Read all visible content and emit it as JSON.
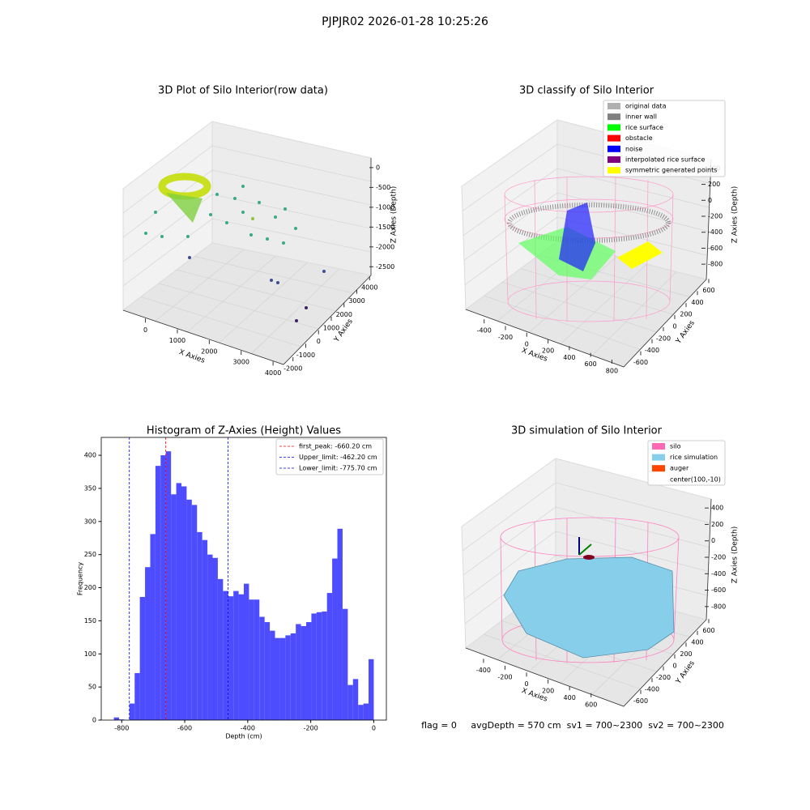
{
  "title": "PJPJR02 2026-01-28 10:25:26",
  "chart_data": [
    {
      "type": "scatter3d",
      "title": "3D Plot of Silo Interior(row data)",
      "xlabel": "X Axies",
      "ylabel": "Y Axies",
      "zlabel": "Z Axies (Depth)",
      "xlim": [
        -700,
        4200
      ],
      "xticks": [
        0,
        1000,
        2000,
        3000,
        4000
      ],
      "ylim": [
        -2300,
        4300
      ],
      "yticks": [
        -2000,
        -1000,
        0,
        1000,
        2000,
        3000,
        4000
      ],
      "zlim": [
        -2800,
        100
      ],
      "zticks": [
        -2500,
        -2000,
        -1500,
        -1000,
        -500,
        0
      ]
    },
    {
      "type": "scatter3d",
      "title": "3D classify of Silo Interior",
      "xlabel": "X Axies",
      "ylabel": "Y Axies",
      "zlabel": "Z Axies (Depth)",
      "xlim": [
        -550,
        850
      ],
      "xticks": [
        -400,
        -200,
        0,
        200,
        400,
        600,
        800
      ],
      "ylim": [
        -700,
        700
      ],
      "yticks": [
        -600,
        -400,
        -200,
        0,
        200,
        400,
        600
      ],
      "zlim": [
        -900,
        500
      ],
      "zticks": [
        -800,
        -600,
        -400,
        -200,
        0,
        200,
        400
      ],
      "legend": [
        {
          "name": "original data",
          "color": "#b0b0b0"
        },
        {
          "name": "inner wall",
          "color": "#808080"
        },
        {
          "name": "rice surface",
          "color": "#00ff00"
        },
        {
          "name": "obstacle",
          "color": "#ff0000"
        },
        {
          "name": "noise",
          "color": "#0000ff"
        },
        {
          "name": "interpolated rice surface",
          "color": "#800080"
        },
        {
          "name": "symmetric generated points",
          "color": "#ffff00"
        }
      ]
    },
    {
      "type": "histogram",
      "title": "Histogram of Z-Axies (Height) Values",
      "xlabel": "Depth (cm)",
      "ylabel": "Frequency",
      "color": "#4d4dff",
      "bins": [
        -825,
        -808.5,
        -792,
        -775.5,
        -759,
        -742.5,
        -726,
        -709.5,
        -693,
        -676.5,
        -660,
        -643.5,
        -627,
        -610.5,
        -594,
        -577.5,
        -561,
        -544.5,
        -528,
        -511.5,
        -495,
        -478.5,
        -462,
        -445.5,
        -429,
        -412.5,
        -396,
        -379.5,
        -363,
        -346.5,
        -330,
        -313.5,
        -297,
        -280.5,
        -264,
        -247.5,
        -231,
        -214.5,
        -198,
        -181.5,
        -165,
        -148.5,
        -132,
        -115.5,
        -99,
        -82.5,
        -66,
        -49.5,
        -33,
        -16.5,
        0
      ],
      "counts": [
        4,
        1,
        0,
        25,
        71,
        186,
        231,
        281,
        384,
        400,
        406,
        341,
        358,
        353,
        333,
        325,
        284,
        272,
        250,
        245,
        213,
        195,
        187,
        195,
        190,
        206,
        182,
        182,
        156,
        148,
        135,
        124,
        124,
        128,
        131,
        145,
        142,
        148,
        161,
        163,
        164,
        192,
        244,
        289,
        168,
        53,
        62,
        23,
        25,
        92
      ],
      "xlim": [
        -865,
        40
      ],
      "xticks": [
        -800,
        -600,
        -400,
        -200,
        0
      ],
      "ylim": [
        0,
        427
      ],
      "yticks": [
        0,
        50,
        100,
        150,
        200,
        250,
        300,
        350,
        400
      ],
      "lines": [
        {
          "name": "first_peak: -660.20 cm",
          "value": -660.2,
          "color": "#ff0000"
        },
        {
          "name": "Upper_limit: -462.20 cm",
          "value": -462.2,
          "color": "#0000ff"
        },
        {
          "name": "Lower_limit: -775.70 cm",
          "value": -775.7,
          "color": "#0000ff"
        }
      ]
    },
    {
      "type": "surface3d",
      "title": "3D simulation of Silo Interior",
      "xlabel": "X Axies",
      "ylabel": "Y Axies",
      "zlabel": "Z Axies (Depth)",
      "xlim": [
        -550,
        700
      ],
      "xticks": [
        -400,
        -200,
        0,
        200,
        400,
        600
      ],
      "ylim": [
        -700,
        700
      ],
      "yticks": [
        -600,
        -400,
        -200,
        0,
        200,
        400,
        600
      ],
      "zlim": [
        -900,
        500
      ],
      "zticks": [
        -800,
        -600,
        -400,
        -200,
        0,
        200,
        400
      ],
      "legend": [
        {
          "name": "silo",
          "color": "#ff69b4"
        },
        {
          "name": "rice simulation",
          "color": "#87ceeb"
        },
        {
          "name": "auger",
          "color": "#ff4500"
        },
        {
          "name": "center(100,-10)"
        }
      ]
    }
  ],
  "footer": "flag = 0     avgDepth = 570 cm  sv1 = 700~2300  sv2 = 700~2300"
}
